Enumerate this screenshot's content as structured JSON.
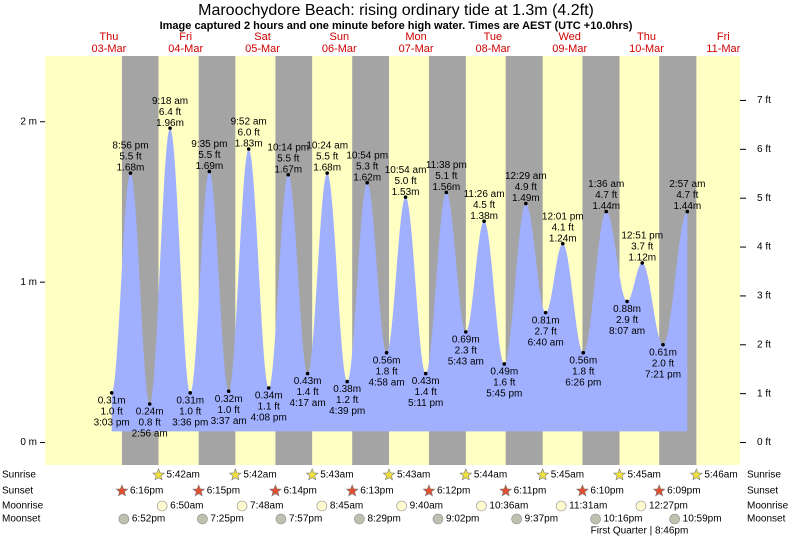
{
  "chart_data": {
    "type": "tide",
    "title": "Maroochydore Beach: rising  ordinary tide at 1.3m (4.2ft)",
    "subtitle": "Image captured 2 hours and one minute before high water. Times are AEST (UTC +10.0hrs)",
    "ylim": [
      -0.14,
      2.41
    ],
    "yticks": [
      {
        "value": 0,
        "label": "0 m"
      },
      {
        "value": 1,
        "label": "1 m"
      },
      {
        "value": 2,
        "label": "2 m"
      }
    ],
    "y2lim": [
      -0.46,
      7.91
    ],
    "y2ticks": [
      {
        "value": 0,
        "label": "0 ft"
      },
      {
        "value": 1,
        "label": "1 ft"
      },
      {
        "value": 2,
        "label": "2 ft"
      },
      {
        "value": 3,
        "label": "3 ft"
      },
      {
        "value": 4,
        "label": "4 ft"
      },
      {
        "value": 5,
        "label": "5 ft"
      },
      {
        "value": 6,
        "label": "6 ft"
      },
      {
        "value": 7,
        "label": "7 ft"
      }
    ],
    "row_labels": {
      "sunrise": "Sunrise",
      "sunset": "Sunset",
      "moonrise": "Moonrise",
      "moonset": "Moonset"
    },
    "days": [
      {
        "dow": "Thu",
        "date": "03-Mar",
        "sunset": "6:16pm",
        "moonset": "6:52pm",
        "tides": [
          {
            "time": "3:03 pm",
            "m": 0.31,
            "m_label": "0.31m",
            "ft_label": "1.0 ft"
          },
          {
            "time": "8:56 pm",
            "m": 1.68,
            "m_label": "1.68m",
            "ft_label": "5.5 ft"
          }
        ]
      },
      {
        "dow": "Fri",
        "date": "04-Mar",
        "sunrise": "5:42am",
        "sunset": "6:15pm",
        "moonrise": "6:50am",
        "moonset": "7:25pm",
        "tides": [
          {
            "time": "2:56 am",
            "m": 0.24,
            "m_label": "0.24m",
            "ft_label": "0.8 ft"
          },
          {
            "time": "9:18 am",
            "m": 1.96,
            "m_label": "1.96m",
            "ft_label": "6.4 ft"
          },
          {
            "time": "3:36 pm",
            "m": 0.31,
            "m_label": "0.31m",
            "ft_label": "1.0 ft"
          },
          {
            "time": "9:35 pm",
            "m": 1.69,
            "m_label": "1.69m",
            "ft_label": "5.5 ft"
          }
        ]
      },
      {
        "dow": "Sat",
        "date": "05-Mar",
        "sunrise": "5:42am",
        "sunset": "6:14pm",
        "moonrise": "7:48am",
        "moonset": "7:57pm",
        "tides": [
          {
            "time": "3:37 am",
            "m": 0.32,
            "m_label": "0.32m",
            "ft_label": "1.0 ft"
          },
          {
            "time": "9:52 am",
            "m": 1.83,
            "m_label": "1.83m",
            "ft_label": "6.0 ft"
          },
          {
            "time": "4:08 pm",
            "m": 0.34,
            "m_label": "0.34m",
            "ft_label": "1.1 ft"
          },
          {
            "time": "10:14 pm",
            "m": 1.67,
            "m_label": "1.67m",
            "ft_label": "5.5 ft"
          }
        ]
      },
      {
        "dow": "Sun",
        "date": "06-Mar",
        "sunrise": "5:43am",
        "sunset": "6:13pm",
        "moonrise": "8:45am",
        "moonset": "8:29pm",
        "tides": [
          {
            "time": "4:17 am",
            "m": 0.43,
            "m_label": "0.43m",
            "ft_label": "1.4 ft"
          },
          {
            "time": "10:24 am",
            "m": 1.68,
            "m_label": "1.68m",
            "ft_label": "5.5 ft"
          },
          {
            "time": "4:39 pm",
            "m": 0.38,
            "m_label": "0.38m",
            "ft_label": "1.2 ft"
          },
          {
            "time": "10:54 pm",
            "m": 1.62,
            "m_label": "1.62m",
            "ft_label": "5.3 ft"
          }
        ]
      },
      {
        "dow": "Mon",
        "date": "07-Mar",
        "sunrise": "5:43am",
        "sunset": "6:12pm",
        "moonrise": "9:40am",
        "moonset": "9:02pm",
        "tides": [
          {
            "time": "4:58 am",
            "m": 0.56,
            "m_label": "0.56m",
            "ft_label": "1.8 ft"
          },
          {
            "time": "10:54 am",
            "m": 1.53,
            "m_label": "1.53m",
            "ft_label": "5.0 ft"
          },
          {
            "time": "5:11 pm",
            "m": 0.43,
            "m_label": "0.43m",
            "ft_label": "1.4 ft"
          },
          {
            "time": "11:38 pm",
            "m": 1.56,
            "m_label": "1.56m",
            "ft_label": "5.1 ft"
          }
        ]
      },
      {
        "dow": "Tue",
        "date": "08-Mar",
        "sunrise": "5:44am",
        "sunset": "6:11pm",
        "moonrise": "10:36am",
        "moonset": "9:37pm",
        "tides": [
          {
            "time": "5:43 am",
            "m": 0.69,
            "m_label": "0.69m",
            "ft_label": "2.3 ft"
          },
          {
            "time": "11:26 am",
            "m": 1.38,
            "m_label": "1.38m",
            "ft_label": "4.5 ft"
          },
          {
            "time": "5:45 pm",
            "m": 0.49,
            "m_label": "0.49m",
            "ft_label": "1.6 ft"
          }
        ]
      },
      {
        "dow": "Wed",
        "date": "09-Mar",
        "sunrise": "5:45am",
        "sunset": "6:10pm",
        "moonrise": "11:31am",
        "moonset": "10:16pm",
        "tides": [
          {
            "time": "12:29 am",
            "m": 1.49,
            "m_label": "1.49m",
            "ft_label": "4.9 ft"
          },
          {
            "time": "6:40 am",
            "m": 0.81,
            "m_label": "0.81m",
            "ft_label": "2.7 ft"
          },
          {
            "time": "12:01 pm",
            "m": 1.24,
            "m_label": "1.24m",
            "ft_label": "4.1 ft"
          },
          {
            "time": "6:26 pm",
            "m": 0.56,
            "m_label": "0.56m",
            "ft_label": "1.8 ft"
          }
        ]
      },
      {
        "dow": "Thu",
        "date": "10-Mar",
        "sunrise": "5:45am",
        "sunset": "6:09pm",
        "moonrise": "12:27pm",
        "moonset": "10:59pm",
        "moon_phase": "First Quarter | 8:46pm",
        "tides": [
          {
            "time": "1:36 am",
            "m": 1.44,
            "m_label": "1.44m",
            "ft_label": "4.7 ft"
          },
          {
            "time": "8:07 am",
            "m": 0.88,
            "m_label": "0.88m",
            "ft_label": "2.9 ft"
          },
          {
            "time": "12:51 pm",
            "m": 1.12,
            "m_label": "1.12m",
            "ft_label": "3.7 ft"
          },
          {
            "time": "7:21 pm",
            "m": 0.61,
            "m_label": "0.61m",
            "ft_label": "2.0 ft"
          }
        ]
      },
      {
        "dow": "Fri",
        "date": "11-Mar",
        "sunrise": "5:46am",
        "tides": [
          {
            "time": "2:57 am",
            "m": 1.44,
            "m_label": "1.44m",
            "ft_label": "4.7 ft"
          }
        ]
      }
    ]
  }
}
